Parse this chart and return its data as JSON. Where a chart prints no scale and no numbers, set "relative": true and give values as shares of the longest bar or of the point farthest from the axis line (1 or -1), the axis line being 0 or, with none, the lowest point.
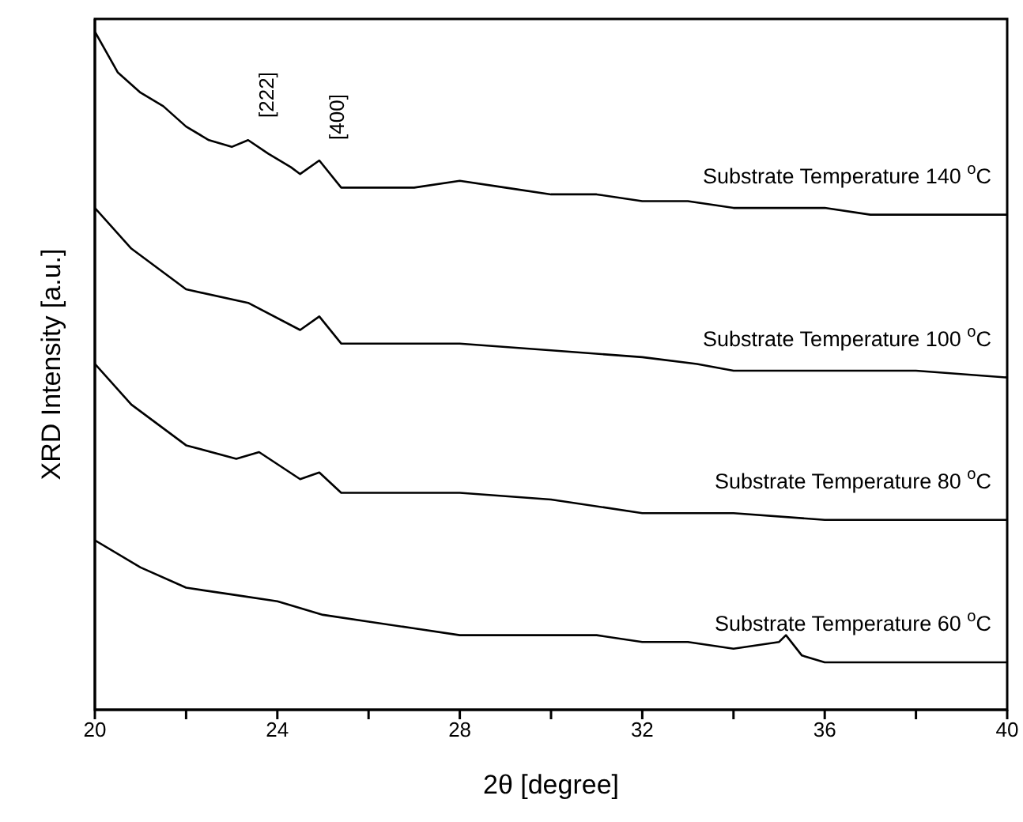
{
  "chart_data": {
    "type": "line",
    "relative": true,
    "xlabel": "2θ [degree]",
    "ylabel": "XRD Intensity [a.u.]",
    "xlim": [
      20,
      40
    ],
    "xticks": [
      20,
      {
        "value": 22,
        "label": null
      },
      24,
      {
        "value": 26,
        "label": null
      },
      28,
      {
        "value": 30,
        "label": null
      },
      32,
      {
        "value": 34,
        "label": null
      },
      36,
      {
        "value": 38,
        "label": null
      },
      40
    ],
    "tick_labels": "x",
    "grid": false,
    "legend": false,
    "marker": "none",
    "line_style": "solid",
    "annotations": [
      "[222]",
      "[400]"
    ],
    "series": [
      {
        "name": "Substrate Temperature 140 $^{o}$C",
        "color": "#000000",
        "x": [
          20,
          20.5,
          21,
          21.5,
          22,
          22.5,
          23,
          23.36,
          23.8,
          24.3,
          24.5,
          24.92,
          25.4,
          26,
          27,
          28,
          29,
          30,
          31,
          32,
          33,
          34,
          35,
          36,
          37,
          38,
          40
        ],
        "values": [
          1.0,
          0.94,
          0.91,
          0.89,
          0.86,
          0.84,
          0.83,
          0.84,
          0.82,
          0.8,
          0.79,
          0.81,
          0.77,
          0.77,
          0.77,
          0.78,
          0.77,
          0.76,
          0.76,
          0.75,
          0.75,
          0.74,
          0.74,
          0.74,
          0.73,
          0.73,
          0.73
        ]
      },
      {
        "name": "Substrate Temperature 100 $^{o}$C",
        "color": "#000000",
        "x": [
          20,
          20.8,
          22,
          23.36,
          24.5,
          24.92,
          25.4,
          26,
          27,
          28,
          30,
          32,
          33.2,
          34,
          36,
          38,
          40
        ],
        "values": [
          0.74,
          0.68,
          0.62,
          0.6,
          0.56,
          0.58,
          0.54,
          0.54,
          0.54,
          0.54,
          0.53,
          0.52,
          0.51,
          0.5,
          0.5,
          0.5,
          0.49
        ]
      },
      {
        "name": "Substrate Temperature 80 $^{o}$C",
        "color": "#000000",
        "x": [
          20,
          20.8,
          22,
          23.1,
          23.6,
          24.5,
          24.92,
          25.4,
          27,
          28,
          30,
          32,
          34,
          36,
          38,
          40
        ],
        "values": [
          0.51,
          0.45,
          0.39,
          0.37,
          0.38,
          0.34,
          0.35,
          0.32,
          0.32,
          0.32,
          0.31,
          0.29,
          0.29,
          0.28,
          0.28,
          0.28
        ]
      },
      {
        "name": "Substrate Temperature 60 $^{o}$C",
        "color": "#000000",
        "x": [
          20,
          21,
          22,
          23,
          24,
          25,
          26,
          27,
          28,
          29,
          30,
          31,
          32,
          33,
          34,
          35,
          35.15,
          35.5,
          36,
          36.5,
          37,
          38,
          39,
          40
        ],
        "values": [
          0.25,
          0.21,
          0.18,
          0.17,
          0.16,
          0.14,
          0.13,
          0.12,
          0.11,
          0.11,
          0.11,
          0.11,
          0.1,
          0.1,
          0.09,
          0.1,
          0.11,
          0.08,
          0.07,
          0.07,
          0.07,
          0.07,
          0.07,
          0.07
        ]
      }
    ]
  }
}
